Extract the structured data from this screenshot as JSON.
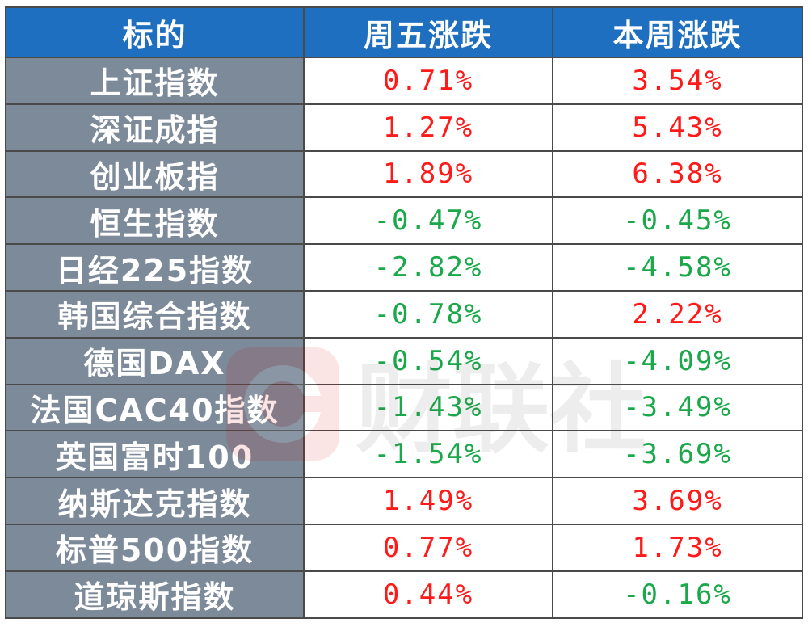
{
  "header": {
    "col_name": "标的",
    "col_friday": "周五涨跌",
    "col_week": "本周涨跌"
  },
  "rows": [
    {
      "name": "上证指数",
      "friday": "0.71%",
      "week": "3.54%",
      "friday_dir": "up",
      "week_dir": "up"
    },
    {
      "name": "深证成指",
      "friday": "1.27%",
      "week": "5.43%",
      "friday_dir": "up",
      "week_dir": "up"
    },
    {
      "name": "创业板指",
      "friday": "1.89%",
      "week": "6.38%",
      "friday_dir": "up",
      "week_dir": "up"
    },
    {
      "name": "恒生指数",
      "friday": "-0.47%",
      "week": "-0.45%",
      "friday_dir": "down",
      "week_dir": "down"
    },
    {
      "name": "日经225指数",
      "friday": "-2.82%",
      "week": "-4.58%",
      "friday_dir": "down",
      "week_dir": "down"
    },
    {
      "name": "韩国综合指数",
      "friday": "-0.78%",
      "week": "2.22%",
      "friday_dir": "down",
      "week_dir": "up"
    },
    {
      "name": "德国DAX",
      "friday": "-0.54%",
      "week": "-4.09%",
      "friday_dir": "down",
      "week_dir": "down"
    },
    {
      "name": "法国CAC40指数",
      "friday": "-1.43%",
      "week": "-3.49%",
      "friday_dir": "down",
      "week_dir": "down"
    },
    {
      "name": "英国富时100",
      "friday": "-1.54%",
      "week": "-3.69%",
      "friday_dir": "down",
      "week_dir": "down"
    },
    {
      "name": "纳斯达克指数",
      "friday": "1.49%",
      "week": "3.69%",
      "friday_dir": "up",
      "week_dir": "up"
    },
    {
      "name": "标普500指数",
      "friday": "0.77%",
      "week": "1.73%",
      "friday_dir": "up",
      "week_dir": "up"
    },
    {
      "name": "道琼斯指数",
      "friday": "0.44%",
      "week": "-0.16%",
      "friday_dir": "up",
      "week_dir": "down"
    }
  ],
  "colors": {
    "header_bg": "#1f6fc0",
    "name_bg": "#7d8a99",
    "up": "#ff1a1a",
    "down": "#1aa84a"
  },
  "watermark": {
    "text": "财联社",
    "icon": "cls-logo-icon"
  }
}
